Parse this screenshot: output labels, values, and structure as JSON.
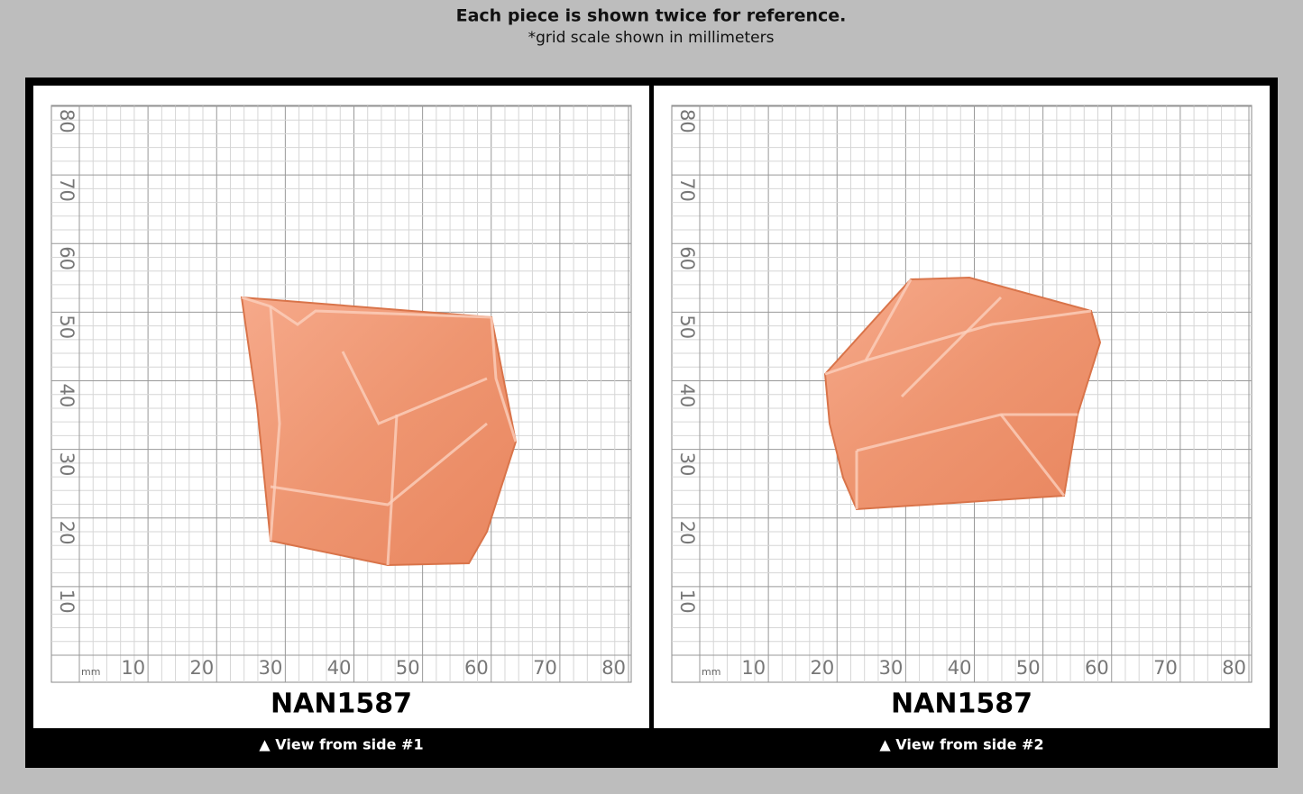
{
  "header": {
    "title": "Each piece is shown twice for reference.",
    "subtitle": "*grid scale shown in millimeters"
  },
  "grid": {
    "unit": "mm",
    "ticks": [
      10,
      20,
      30,
      40,
      50,
      60,
      70,
      80
    ]
  },
  "panels": [
    {
      "label": "NAN1587",
      "caption": "▲ View from side #1"
    },
    {
      "label": "NAN1587",
      "caption": "▲ View from side #2"
    }
  ]
}
